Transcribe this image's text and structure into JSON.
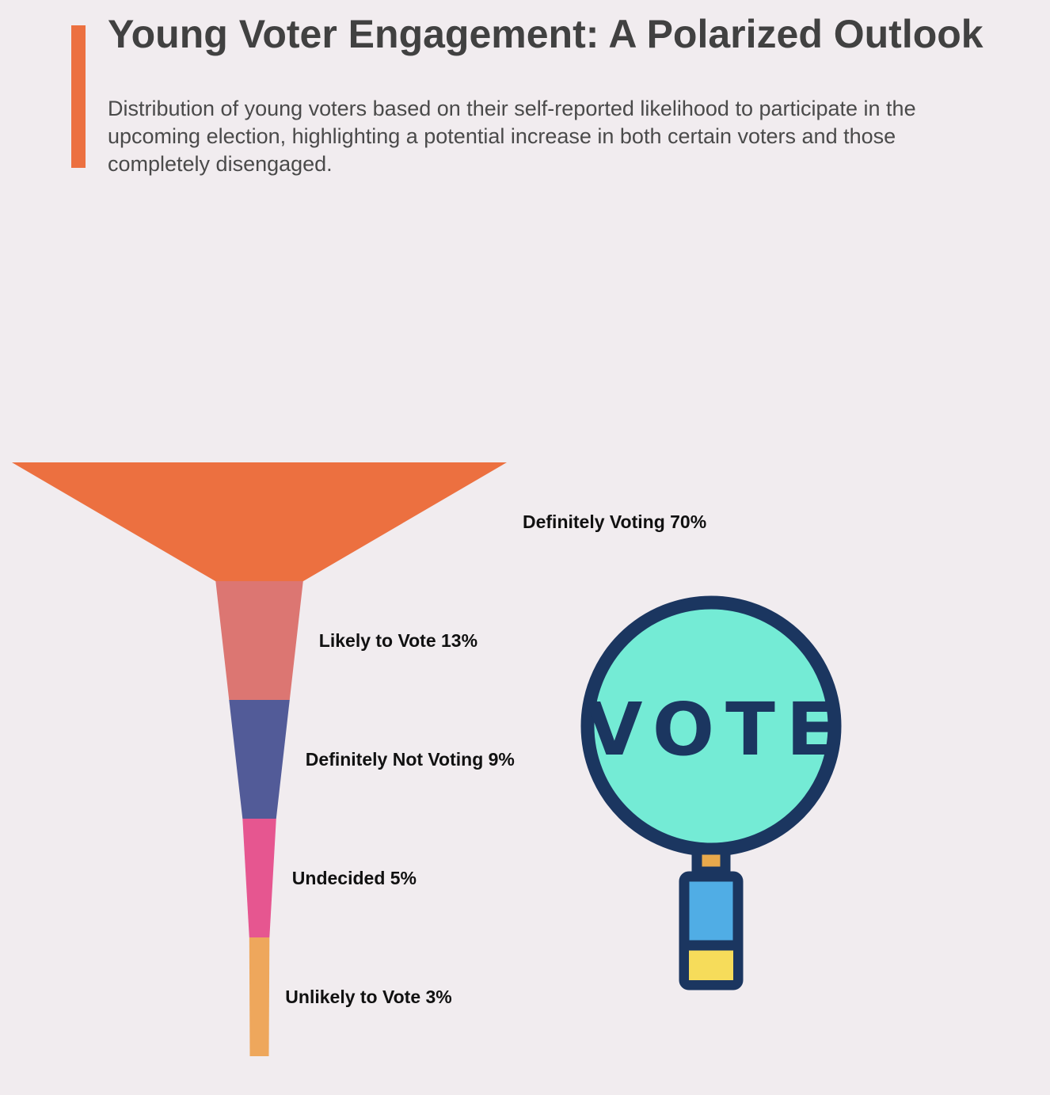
{
  "header": {
    "title": "Young Voter Engagement: A Polarized Outlook",
    "subtitle": "Distribution of young voters based on their self-reported likelihood to participate in the upcoming election, highlighting a potential increase in both certain voters and those completely disengaged.",
    "accent_color": "#ec7040"
  },
  "chart_data": {
    "type": "funnel",
    "title": "Young Voter Engagement: A Polarized Outlook",
    "unit": "%",
    "stages": [
      {
        "label": "Definitely Voting",
        "value": 70,
        "display": "Definitely Voting 70%",
        "color": "#ec7040"
      },
      {
        "label": "Likely to Vote",
        "value": 13,
        "display": "Likely to Vote 13%",
        "color": "#dc7672"
      },
      {
        "label": "Definitely Not Voting",
        "value": 9,
        "display": "Definitely Not Voting 9%",
        "color": "#525b98"
      },
      {
        "label": "Undecided",
        "value": 5,
        "display": "Undecided 5%",
        "color": "#e65690"
      },
      {
        "label": "Unlikely to Vote",
        "value": 3,
        "display": "Unlikely to Vote 3%",
        "color": "#eea75c"
      }
    ]
  },
  "vote_icon": {
    "text": "VOTE",
    "icon": "vote-sign-icon",
    "colors": {
      "outline": "#1b3660",
      "sign_fill": "#74ebd5",
      "handle_fill": "#50ade5",
      "handle_band": "#f6dc5a",
      "connector": "#e8a94c"
    }
  }
}
